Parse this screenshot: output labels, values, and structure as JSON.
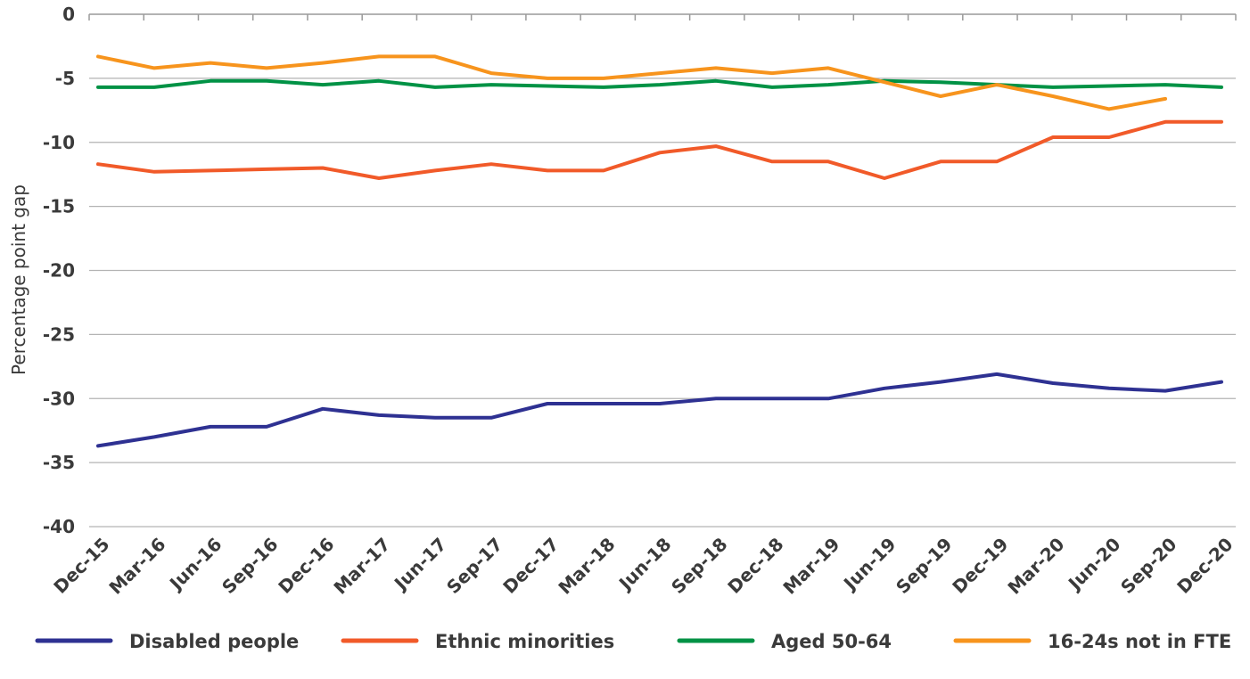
{
  "chart_data": {
    "type": "line",
    "title": "",
    "xlabel": "",
    "ylabel": "Percentage point gap",
    "ylim": [
      -40,
      0
    ],
    "yticks": [
      0,
      -5,
      -10,
      -15,
      -20,
      -25,
      -30,
      -35,
      -40
    ],
    "ytick_labels": [
      "0",
      "-5",
      "-10",
      "-15",
      "-20",
      "-25",
      "-30",
      "-35",
      "-40"
    ],
    "grid": true,
    "legend_position": "bottom",
    "categories": [
      "Dec-15",
      "Mar-16",
      "Jun-16",
      "Sep-16",
      "Dec-16",
      "Mar-17",
      "Jun-17",
      "Sep-17",
      "Dec-17",
      "Mar-18",
      "Jun-18",
      "Sep-18",
      "Dec-18",
      "Mar-19",
      "Jun-19",
      "Sep-19",
      "Dec-19",
      "Mar-20",
      "Jun-20",
      "Sep-20",
      "Dec-20"
    ],
    "series": [
      {
        "name": "Disabled people",
        "color": "#2e3192",
        "values": [
          -33.7,
          -33.0,
          -32.2,
          -32.2,
          -30.8,
          -31.3,
          -31.5,
          -31.5,
          -30.4,
          -30.4,
          -30.4,
          -30.0,
          -30.0,
          -30.0,
          -29.2,
          -28.7,
          -28.1,
          -28.8,
          -29.2,
          -29.4,
          -28.7
        ]
      },
      {
        "name": "Ethnic minorities",
        "color": "#f15a29",
        "values": [
          -11.7,
          -12.3,
          -12.2,
          -12.1,
          -12.0,
          -12.8,
          -12.2,
          -11.7,
          -12.2,
          -12.2,
          -10.8,
          -10.3,
          -11.5,
          -11.5,
          -12.8,
          -11.5,
          -11.5,
          -9.6,
          -9.6,
          -8.4,
          -8.4
        ]
      },
      {
        "name": "Aged 50-64",
        "color": "#009245",
        "values": [
          -5.7,
          -5.7,
          -5.2,
          -5.2,
          -5.5,
          -5.2,
          -5.7,
          -5.5,
          -5.6,
          -5.7,
          -5.5,
          -5.2,
          -5.7,
          -5.5,
          -5.2,
          -5.3,
          -5.5,
          -5.7,
          -5.6,
          -5.5,
          -5.7
        ]
      },
      {
        "name": "16-24s not in FTE",
        "color": "#f7941d",
        "values": [
          -3.3,
          -4.2,
          -3.8,
          -4.2,
          -3.8,
          -3.3,
          -3.3,
          -4.6,
          -5.0,
          -5.0,
          -4.6,
          -4.2,
          -4.6,
          -4.2,
          -5.3,
          -6.4,
          -5.5,
          -6.4,
          -7.4,
          -6.6,
          null
        ]
      }
    ]
  }
}
